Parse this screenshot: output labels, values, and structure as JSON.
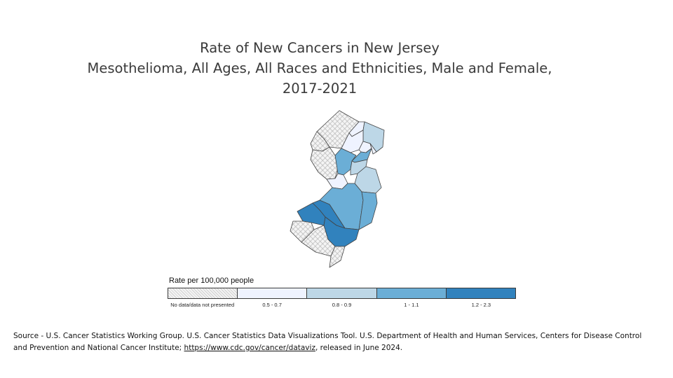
{
  "title": {
    "line1": "Rate of New Cancers in New Jersey",
    "line2": "Mesothelioma, All Ages, All Races and Ethnicities, Male and Female,",
    "line3": "2017-2021"
  },
  "legend": {
    "title": "Rate per 100,000 people",
    "classes": [
      {
        "label": "No data/data not presented",
        "color": "hatch"
      },
      {
        "label": "0.5 - 0.7",
        "color": "#eff3ff"
      },
      {
        "label": "0.8 - 0.9",
        "color": "#bdd7e7"
      },
      {
        "label": "1 - 1.1",
        "color": "#6baed6"
      },
      {
        "label": "1.2 - 2.3",
        "color": "#3182bd"
      }
    ]
  },
  "source": {
    "text_before": "Source - U.S. Cancer Statistics Working Group. U.S. Cancer Statistics Data Visualizations Tool. U.S. Department of Health and Human Services, Centers for Disease Control and Prevention and National Cancer Institute; ",
    "link": "https://www.cdc.gov/cancer/dataviz",
    "text_after": ", released in June 2024."
  },
  "map": {
    "counties": [
      {
        "name": "Sussex",
        "class": 0
      },
      {
        "name": "Passaic",
        "class": 1
      },
      {
        "name": "Bergen",
        "class": 2
      },
      {
        "name": "Warren",
        "class": 0
      },
      {
        "name": "Morris",
        "class": 1
      },
      {
        "name": "Essex",
        "class": 1
      },
      {
        "name": "Hudson",
        "class": 1
      },
      {
        "name": "Union",
        "class": 3
      },
      {
        "name": "Hunterdon",
        "class": 0
      },
      {
        "name": "Somerset",
        "class": 3
      },
      {
        "name": "Middlesex",
        "class": 2
      },
      {
        "name": "Mercer",
        "class": 1
      },
      {
        "name": "Monmouth",
        "class": 2
      },
      {
        "name": "Burlington",
        "class": 3
      },
      {
        "name": "Ocean",
        "class": 3
      },
      {
        "name": "Gloucester",
        "class": 4
      },
      {
        "name": "Camden",
        "class": 4
      },
      {
        "name": "Salem",
        "class": 0
      },
      {
        "name": "Atlantic",
        "class": 4
      },
      {
        "name": "Cumberland",
        "class": 0
      },
      {
        "name": "Cape May",
        "class": 0
      }
    ]
  }
}
